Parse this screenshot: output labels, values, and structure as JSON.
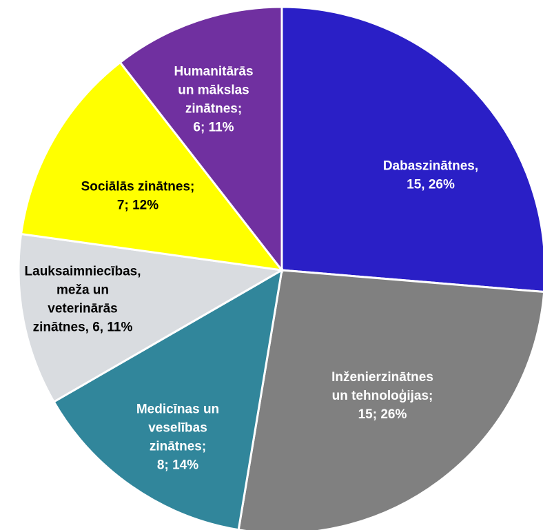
{
  "chart_data": {
    "type": "pie",
    "values": [
      15,
      15,
      8,
      6,
      7,
      6
    ],
    "value_labels": [
      [
        "Dabaszinātnes,",
        "15, 26%"
      ],
      [
        "Inženierzinātnes",
        "un tehnoloģijas;",
        "15; 26%"
      ],
      [
        "Medicīnas un",
        "veselības",
        "zinātnes;",
        "8; 14%"
      ],
      [
        "Lauksaimniecības,",
        "meža un",
        "veterinārās",
        "zinātnes, 6, 11%"
      ],
      [
        "Sociālās zinātnes;",
        "7; 12%"
      ],
      [
        "Humanitārās",
        "un mākslas",
        "zinātnes;",
        "6; 11%"
      ]
    ],
    "colors": [
      "#2a1fc6",
      "#808080",
      "#31869b",
      "#d9dce0",
      "#ffff00",
      "#7030a0"
    ],
    "label_colors": [
      "#ffffff",
      "#ffffff",
      "#ffffff",
      "#000000",
      "#000000",
      "#ffffff"
    ]
  }
}
